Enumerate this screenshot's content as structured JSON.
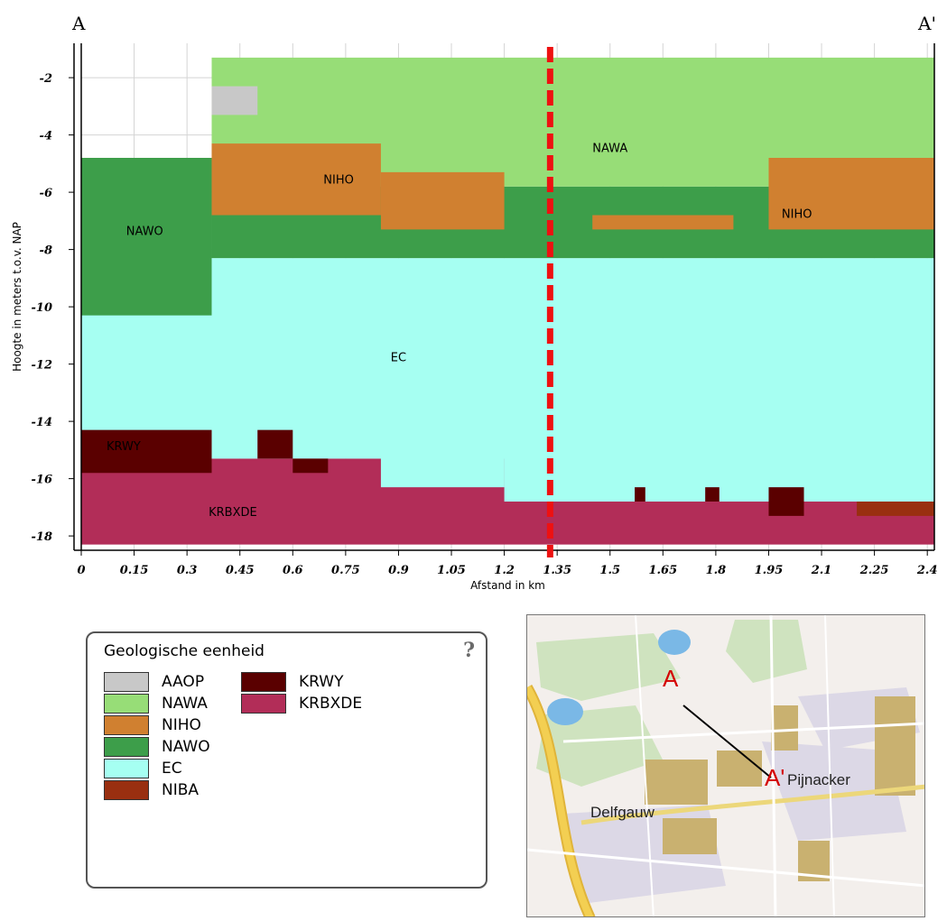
{
  "chart_data": {
    "type": "heatmap",
    "title": "",
    "xlabel": "Afstand in km",
    "ylabel": "Hoogte in meters t.o.v. NAP",
    "xlim": [
      0,
      2.42
    ],
    "ylim": [
      -18.5,
      -0.8
    ],
    "x_ticks": [
      "0",
      "0.15",
      "0.3",
      "0.45",
      "0.6",
      "0.75",
      "0.9",
      "1.05",
      "1.2",
      "1.35",
      "1.5",
      "1.65",
      "1.8",
      "1.95",
      "2.1",
      "2.25",
      "2.4"
    ],
    "y_ticks": [
      "-2",
      "-4",
      "-6",
      "-8",
      "-10",
      "-12",
      "-14",
      "-16",
      "-18"
    ],
    "grid": true,
    "section_start_label": "A",
    "section_end_label": "A'",
    "cursor_position_km": 1.33,
    "cursor_color": "#ee1111",
    "units": [
      {
        "code": "AAOP",
        "color": "#c8c8c8"
      },
      {
        "code": "NAWA",
        "color": "#97dd77"
      },
      {
        "code": "NIHO",
        "color": "#d08030"
      },
      {
        "code": "NAWO",
        "color": "#3d9e4a"
      },
      {
        "code": "EC",
        "color": "#a6fff2"
      },
      {
        "code": "NIBA",
        "color": "#992f10"
      },
      {
        "code": "KRWY",
        "color": "#5a0000"
      },
      {
        "code": "KRBXDE",
        "color": "#b22d58"
      }
    ],
    "cells": [
      {
        "unit": "KRBXDE",
        "x": [
          0,
          2.42
        ],
        "y": [
          -18.3,
          -15.3
        ]
      },
      {
        "unit": "EC",
        "x": [
          0,
          2.42
        ],
        "y": [
          -15.3,
          -8.3
        ]
      },
      {
        "unit": "EC",
        "x": [
          0,
          0.37
        ],
        "y": [
          -14.3,
          -10.5
        ]
      },
      {
        "unit": "EC",
        "x": [
          0.85,
          1.2
        ],
        "y": [
          -16.3,
          -14.3
        ]
      },
      {
        "unit": "EC",
        "x": [
          1.2,
          2.42
        ],
        "y": [
          -16.8,
          -14.3
        ]
      },
      {
        "unit": "NAWO",
        "x": [
          0,
          0.37
        ],
        "y": [
          -10.3,
          -4.8
        ]
      },
      {
        "unit": "NAWO",
        "x": [
          0.37,
          2.42
        ],
        "y": [
          -8.3,
          -5.8
        ]
      },
      {
        "unit": "NAWA",
        "x": [
          0.37,
          2.42
        ],
        "y": [
          -5.8,
          -1.3
        ]
      },
      {
        "unit": "AAOP",
        "x": [
          0.37,
          0.5
        ],
        "y": [
          -3.3,
          -2.3
        ]
      },
      {
        "unit": "NIHO",
        "x": [
          0.37,
          0.85
        ],
        "y": [
          -6.8,
          -4.3
        ]
      },
      {
        "unit": "NIHO",
        "x": [
          0.85,
          1.2
        ],
        "y": [
          -7.3,
          -5.3
        ]
      },
      {
        "unit": "NIHO",
        "x": [
          1.95,
          2.42
        ],
        "y": [
          -7.3,
          -4.8
        ]
      },
      {
        "unit": "NIHO",
        "x": [
          1.45,
          1.85
        ],
        "y": [
          -7.3,
          -6.8
        ]
      },
      {
        "unit": "KRWY",
        "x": [
          0,
          0.37
        ],
        "y": [
          -15.8,
          -14.3
        ]
      },
      {
        "unit": "KRWY",
        "x": [
          0.5,
          0.6
        ],
        "y": [
          -15.3,
          -14.3
        ]
      },
      {
        "unit": "KRWY",
        "x": [
          0.6,
          0.7
        ],
        "y": [
          -15.8,
          -15.3
        ]
      },
      {
        "unit": "KRWY",
        "x": [
          1.95,
          2.05
        ],
        "y": [
          -17.3,
          -16.3
        ]
      },
      {
        "unit": "KRWY",
        "x": [
          1.57,
          1.6
        ],
        "y": [
          -16.8,
          -16.3
        ]
      },
      {
        "unit": "KRWY",
        "x": [
          1.77,
          1.81
        ],
        "y": [
          -16.8,
          -16.3
        ]
      },
      {
        "unit": "NIBA",
        "x": [
          2.2,
          2.42
        ],
        "y": [
          -17.3,
          -16.8
        ]
      }
    ],
    "unit_labels": [
      {
        "text": "NAWA",
        "x": 1.5,
        "y": -4.6
      },
      {
        "text": "NIHO",
        "x": 0.73,
        "y": -5.7
      },
      {
        "text": "NIHO",
        "x": 2.03,
        "y": -6.9
      },
      {
        "text": "NAWO",
        "x": 0.18,
        "y": -7.5
      },
      {
        "text": "EC",
        "x": 0.9,
        "y": -11.9
      },
      {
        "text": "KRWY",
        "x": 0.12,
        "y": -15.0
      },
      {
        "text": "KRBXDE",
        "x": 0.43,
        "y": -17.3
      }
    ]
  },
  "legend": {
    "title": "Geologische eenheid",
    "help_icon": "question-mark-icon",
    "items": [
      {
        "code": "AAOP",
        "color": "#c8c8c8"
      },
      {
        "code": "NAWA",
        "color": "#97dd77"
      },
      {
        "code": "NIHO",
        "color": "#d08030"
      },
      {
        "code": "NAWO",
        "color": "#3d9e4a"
      },
      {
        "code": "EC",
        "color": "#a6fff2"
      },
      {
        "code": "NIBA",
        "color": "#992f10"
      },
      {
        "code": "KRWY",
        "color": "#5a0000"
      },
      {
        "code": "KRBXDE",
        "color": "#b22d58"
      }
    ],
    "help_label": "?"
  },
  "map": {
    "places": [
      "Pijnacker",
      "Delfgauw"
    ],
    "marker_start": "A",
    "marker_end": "A'"
  }
}
